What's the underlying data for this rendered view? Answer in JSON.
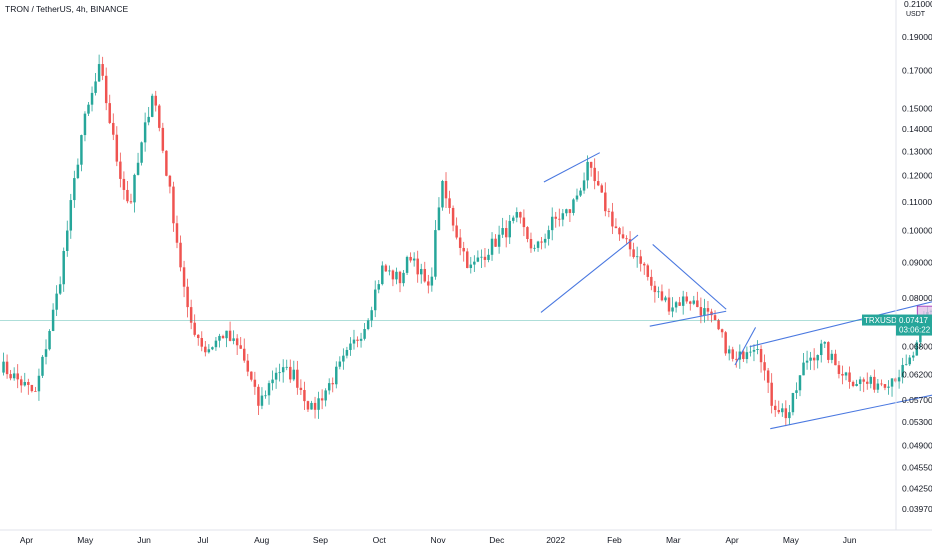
{
  "header": {
    "symbol_title": "TRON / TetherUS, 4h, BINANCE"
  },
  "chart_data": {
    "type": "candlestick",
    "title": "TRON / TetherUS, 4h, BINANCE",
    "price_unit": "USDT",
    "y_scale": "log",
    "ylim": [
      0.037,
      0.215
    ],
    "y_ticks": [
      "0.03970",
      "0.04250",
      "0.04550",
      "0.04900",
      "0.05300",
      "0.05700",
      "0.06200",
      "0.06800",
      "0.07417",
      "0.08000",
      "0.09000",
      "0.10000",
      "0.11000",
      "0.12000",
      "0.13000",
      "0.14000",
      "0.15000",
      "0.17000",
      "0.19000"
    ],
    "y_tick_values": [
      0.0397,
      0.0425,
      0.0455,
      0.049,
      0.053,
      0.057,
      0.062,
      0.068,
      0.08,
      0.09,
      0.1,
      0.11,
      0.12,
      0.13,
      0.14,
      0.15,
      0.17,
      0.19
    ],
    "top_partial_tick": "0.21000",
    "x_ticks": [
      "Apr",
      "May",
      "Jun",
      "Jul",
      "Aug",
      "Sep",
      "Oct",
      "Nov",
      "Dec",
      "2022",
      "Feb",
      "Mar",
      "Apr",
      "May",
      "Jun"
    ],
    "last_price": {
      "symbol": "TRXUSDT",
      "value": "0.07417",
      "countdown": "03:06:22",
      "color": "#26a69a"
    },
    "up_color": "#26a69a",
    "down_color": "#ef5350",
    "trendline_color": "#4a78e0",
    "zone_color": "#e1bee7",
    "price_path": [
      [
        0.0,
        0.064
      ],
      [
        0.6,
        0.058
      ],
      [
        1.0,
        0.083
      ],
      [
        1.4,
        0.14
      ],
      [
        1.7,
        0.172
      ],
      [
        2.0,
        0.125
      ],
      [
        2.2,
        0.108
      ],
      [
        2.6,
        0.16
      ],
      [
        2.9,
        0.112
      ],
      [
        3.2,
        0.075
      ],
      [
        3.5,
        0.067
      ],
      [
        3.8,
        0.071
      ],
      [
        4.1,
        0.067
      ],
      [
        4.4,
        0.056
      ],
      [
        4.7,
        0.063
      ],
      [
        5.0,
        0.062
      ],
      [
        5.3,
        0.055
      ],
      [
        5.6,
        0.06
      ],
      [
        5.9,
        0.066
      ],
      [
        6.2,
        0.073
      ],
      [
        6.5,
        0.088
      ],
      [
        6.8,
        0.085
      ],
      [
        7.0,
        0.093
      ],
      [
        7.3,
        0.081
      ],
      [
        7.5,
        0.117
      ],
      [
        7.8,
        0.097
      ],
      [
        8.0,
        0.088
      ],
      [
        8.4,
        0.096
      ],
      [
        8.8,
        0.104
      ],
      [
        9.1,
        0.093
      ],
      [
        9.4,
        0.103
      ],
      [
        9.7,
        0.107
      ],
      [
        10.0,
        0.123
      ],
      [
        10.3,
        0.108
      ],
      [
        10.6,
        0.096
      ],
      [
        10.9,
        0.091
      ],
      [
        11.1,
        0.082
      ],
      [
        11.4,
        0.078
      ],
      [
        11.7,
        0.08
      ],
      [
        12.0,
        0.076
      ],
      [
        12.2,
        0.072
      ],
      [
        12.5,
        0.064
      ],
      [
        12.7,
        0.068
      ],
      [
        12.9,
        0.069
      ],
      [
        13.1,
        0.057
      ],
      [
        13.4,
        0.054
      ],
      [
        13.7,
        0.065
      ],
      [
        14.0,
        0.068
      ],
      [
        14.2,
        0.064
      ],
      [
        14.5,
        0.061
      ],
      [
        14.8,
        0.06
      ],
      [
        15.1,
        0.061
      ],
      [
        15.4,
        0.063
      ],
      [
        15.6,
        0.068
      ],
      [
        15.8,
        0.077
      ],
      [
        16.0,
        0.073
      ],
      [
        16.3,
        0.061
      ],
      [
        16.6,
        0.059
      ],
      [
        16.9,
        0.063
      ],
      [
        17.1,
        0.074
      ],
      [
        17.3,
        0.064
      ],
      [
        17.6,
        0.062
      ],
      [
        17.8,
        0.068
      ],
      [
        18.0,
        0.07417
      ]
    ],
    "annotations": [
      {
        "kind": "trendline",
        "from": [
          9.2,
          0.0762
        ],
        "to": [
          10.85,
          0.0985
        ]
      },
      {
        "kind": "trendline",
        "from": [
          9.25,
          0.1175
        ],
        "to": [
          10.2,
          0.1295
        ]
      },
      {
        "kind": "trendline",
        "from": [
          11.05,
          0.0728
        ],
        "to": [
          12.35,
          0.0765
        ]
      },
      {
        "kind": "trendline",
        "from": [
          11.1,
          0.0955
        ],
        "to": [
          12.35,
          0.077
        ]
      },
      {
        "kind": "trendline",
        "from": [
          12.5,
          0.064
        ],
        "to": [
          12.85,
          0.0725
        ]
      },
      {
        "kind": "trendline",
        "from": [
          12.75,
          0.068
        ],
        "to": [
          16.0,
          0.0795
        ]
      },
      {
        "kind": "trendline",
        "from": [
          16.0,
          0.0795
        ],
        "to": [
          19.65,
          0.0935
        ]
      },
      {
        "kind": "trendline",
        "from": [
          13.1,
          0.0518
        ],
        "to": [
          19.65,
          0.0675
        ]
      },
      {
        "kind": "zone",
        "from_date": 15.6,
        "to_date": 18.9,
        "price_low": 0.0755,
        "price_high": 0.0778
      }
    ]
  }
}
